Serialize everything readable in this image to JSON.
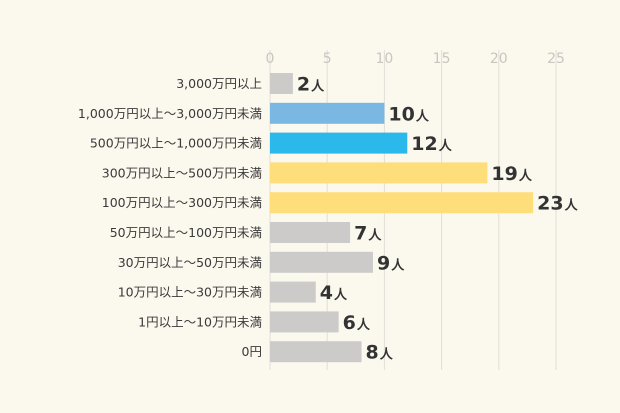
{
  "chart_data": {
    "type": "bar",
    "orientation": "horizontal",
    "title": "",
    "xlabel": "",
    "ylabel": "",
    "xlim": [
      0,
      25
    ],
    "ticks": [
      0,
      5,
      10,
      15,
      20,
      25
    ],
    "grid": true,
    "unit": "人",
    "categories": [
      "3,000万円以上",
      "1,000万円以上〜3,000万円未満",
      "500万円以上〜1,000万円未満",
      "300万円以上〜500万円未満",
      "100万円以上〜300万円未満",
      "50万円以上〜100万円未満",
      "30万円以上〜50万円未満",
      "10万円以上〜30万円未満",
      "1円以上〜10万円未満",
      "0円"
    ],
    "values": [
      2,
      10,
      12,
      19,
      23,
      7,
      9,
      4,
      6,
      8
    ],
    "colors": [
      "#cdcbca",
      "#7ab8e3",
      "#2bb8ea",
      "#fede7a",
      "#fede7a",
      "#cdcbca",
      "#cdcbca",
      "#cdcbca",
      "#cdcbca",
      "#cdcbca"
    ]
  }
}
